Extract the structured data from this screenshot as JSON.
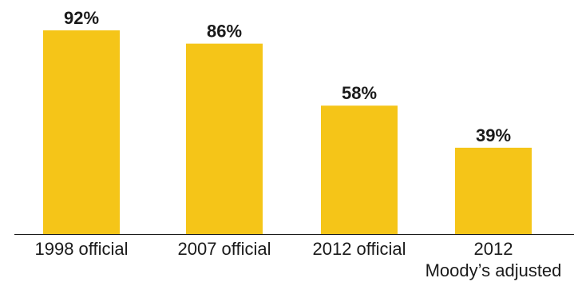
{
  "chart_data": {
    "type": "bar",
    "categories": [
      [
        "1998 official"
      ],
      [
        "2007 official"
      ],
      [
        "2012 official"
      ],
      [
        "2012",
        "Moody’s adjusted"
      ]
    ],
    "values": [
      92,
      86,
      58,
      39
    ],
    "value_labels": [
      "92%",
      "86%",
      "58%",
      "39%"
    ],
    "title": "",
    "xlabel": "",
    "ylabel": "",
    "ylim": [
      0,
      100
    ],
    "grid": false,
    "legend": "none",
    "colors": {
      "bar": "#F5C518",
      "axis": "#1a1a1a",
      "text": "#1a1a1a"
    }
  }
}
